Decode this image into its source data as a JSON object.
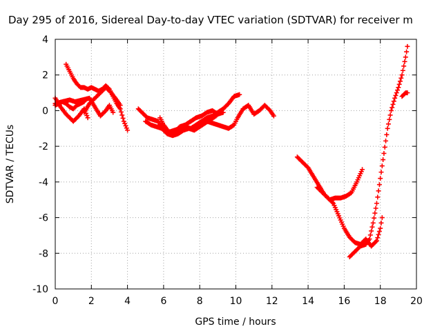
{
  "chart_data": {
    "type": "scatter",
    "title": "Day 295 of 2016, Sidereal Day-to-day VTEC variation (SDTVAR) for receiver m",
    "xlabel": "GPS time / hours",
    "ylabel": "SDTVAR / TECUs",
    "xlim": [
      0,
      20
    ],
    "ylim": [
      -10,
      4
    ],
    "xticks": [
      0,
      2,
      4,
      6,
      8,
      10,
      12,
      14,
      16,
      18,
      20
    ],
    "yticks": [
      -10,
      -8,
      -6,
      -4,
      -2,
      0,
      2,
      4
    ],
    "grid": true,
    "marker": "+",
    "color": "#ff0000",
    "series": [
      {
        "x": [
          0.0,
          0.3,
          0.6,
          1.0,
          1.3,
          1.6,
          1.8
        ],
        "y": [
          0.7,
          0.2,
          -0.2,
          -0.6,
          -0.3,
          0.1,
          -0.4
        ]
      },
      {
        "x": [
          0.0,
          0.4,
          0.8,
          1.1,
          1.5,
          1.9,
          2.2,
          2.5,
          2.8,
          3.0,
          3.2
        ],
        "y": [
          0.4,
          0.5,
          0.6,
          0.5,
          0.6,
          0.7,
          0.2,
          -0.3,
          0.0,
          0.3,
          -0.1
        ]
      },
      {
        "x": [
          0.0,
          0.2,
          0.4,
          0.6,
          0.8,
          1.0,
          1.2,
          1.4,
          1.6
        ],
        "y": [
          0.3,
          0.4,
          0.5,
          0.4,
          0.2,
          0.1,
          0.3,
          0.4,
          0.5
        ]
      },
      {
        "x": [
          0.6,
          0.8,
          1.0,
          1.2,
          1.4,
          1.6,
          1.8,
          2.0,
          2.2,
          2.4,
          2.6,
          2.8,
          3.0,
          3.2,
          3.4,
          3.6,
          3.8,
          4.0
        ],
        "y": [
          2.6,
          2.2,
          1.8,
          1.5,
          1.3,
          1.3,
          1.2,
          1.3,
          1.2,
          1.1,
          1.2,
          1.4,
          1.2,
          0.8,
          0.4,
          0.1,
          -0.6,
          -1.1
        ]
      },
      {
        "x": [
          1.6,
          1.9,
          2.2,
          2.5,
          2.8,
          3.1,
          3.4,
          3.6
        ],
        "y": [
          -0.1,
          0.4,
          0.7,
          1.0,
          1.3,
          1.0,
          0.6,
          0.3
        ]
      },
      {
        "x": [
          4.6,
          4.8,
          5.1,
          5.4,
          5.7,
          6.0,
          6.3,
          6.6,
          6.9,
          7.2,
          7.5,
          7.8,
          8.1,
          8.4,
          8.7,
          9.0,
          9.3
        ],
        "y": [
          0.1,
          -0.1,
          -0.4,
          -0.5,
          -0.6,
          -1.1,
          -1.3,
          -1.2,
          -0.9,
          -0.8,
          -0.6,
          -0.4,
          -0.3,
          -0.1,
          0.0,
          -0.2,
          -0.1
        ]
      },
      {
        "x": [
          5.0,
          5.3,
          5.6,
          5.9,
          6.2,
          6.5,
          6.8,
          7.1,
          7.4,
          7.7,
          8.0,
          8.3,
          8.6,
          8.9,
          9.2
        ],
        "y": [
          -0.6,
          -0.8,
          -0.9,
          -1.0,
          -1.3,
          -1.4,
          -1.3,
          -1.1,
          -1.0,
          -1.1,
          -0.9,
          -0.7,
          -0.5,
          -0.3,
          0.0
        ]
      },
      {
        "x": [
          5.8,
          6.0,
          6.3,
          6.6,
          6.9,
          7.2,
          7.5,
          7.8,
          8.1,
          8.4,
          8.7,
          9.0,
          9.3,
          9.6,
          9.9,
          10.2
        ],
        "y": [
          -0.4,
          -0.8,
          -1.2,
          -1.1,
          -1.0,
          -0.9,
          -1.0,
          -0.8,
          -0.6,
          -0.4,
          -0.3,
          -0.1,
          0.1,
          0.4,
          0.8,
          0.9
        ]
      },
      {
        "x": [
          7.8,
          8.1,
          8.4,
          8.7,
          9.0,
          9.3,
          9.6,
          9.9,
          10.1,
          10.4,
          10.7,
          11.0,
          11.3,
          11.6,
          11.9,
          12.1
        ],
        "y": [
          -0.9,
          -0.8,
          -0.6,
          -0.7,
          -0.8,
          -0.9,
          -1.0,
          -0.8,
          -0.4,
          0.1,
          0.3,
          -0.2,
          0.0,
          0.3,
          0.0,
          -0.3
        ]
      },
      {
        "x": [
          13.4,
          13.7,
          14.0,
          14.3,
          14.6,
          14.9,
          15.2,
          15.5,
          15.8,
          16.1,
          16.4,
          16.7,
          17.0
        ],
        "y": [
          -2.6,
          -2.9,
          -3.2,
          -3.7,
          -4.2,
          -4.7,
          -5.0,
          -4.9,
          -4.9,
          -4.8,
          -4.6,
          -4.0,
          -3.3
        ]
      },
      {
        "x": [
          14.5,
          14.8,
          15.1,
          15.4,
          15.7,
          16.0,
          16.3,
          16.6,
          16.9,
          17.2,
          17.5,
          17.8,
          18.0,
          18.1
        ],
        "y": [
          -4.3,
          -4.6,
          -4.9,
          -5.2,
          -5.9,
          -6.6,
          -7.1,
          -7.4,
          -7.5,
          -7.2,
          -7.6,
          -7.3,
          -6.6,
          -6.0
        ]
      },
      {
        "x": [
          16.3,
          16.6,
          16.9,
          17.2,
          17.4,
          17.6,
          17.8,
          18.0,
          18.2,
          18.4,
          18.6,
          18.8,
          19.0,
          19.2,
          19.4,
          19.5
        ],
        "y": [
          -8.2,
          -7.9,
          -7.6,
          -7.5,
          -7.2,
          -6.3,
          -5.2,
          -3.8,
          -2.4,
          -1.0,
          0.0,
          0.7,
          1.3,
          2.0,
          3.0,
          3.6
        ]
      },
      {
        "x": [
          19.2,
          19.4,
          19.5
        ],
        "y": [
          0.8,
          1.0,
          1.0
        ]
      }
    ]
  }
}
